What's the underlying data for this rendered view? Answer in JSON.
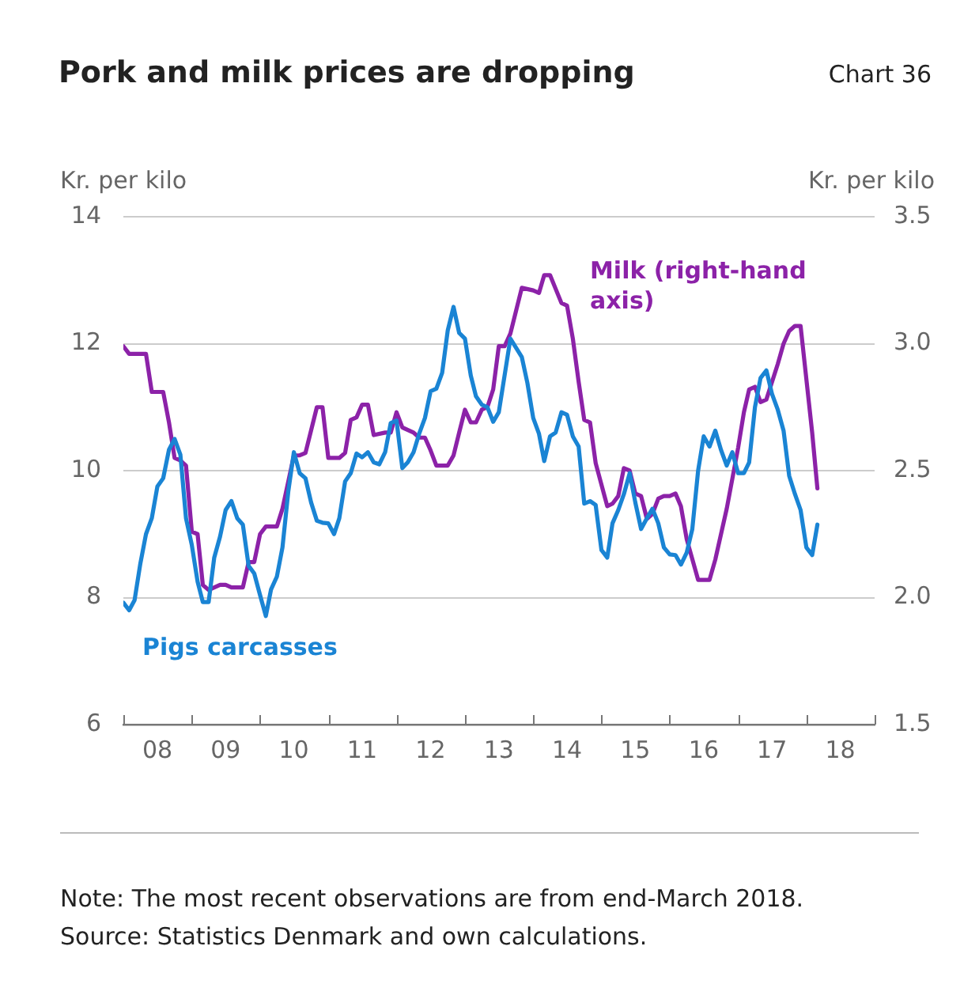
{
  "chart_data": {
    "type": "line",
    "title": "Pork and milk prices are dropping",
    "ylabel": "Kr. per kilo",
    "y2label": "Kr. per kilo",
    "annotations": [
      "Chart 36",
      "Note: The most recent observations are from end-March 2018.",
      "Source: Statistics Denmark and own calculations."
    ],
    "xlim": [
      "2008-01",
      "2019-01"
    ],
    "xticks": [
      {
        "value": "2008-01",
        "label": null
      },
      {
        "value": "2008-07",
        "label": "08"
      },
      {
        "value": "2009-01",
        "label": null
      },
      {
        "value": "2009-07",
        "label": "09"
      },
      {
        "value": "2010-01",
        "label": null
      },
      {
        "value": "2010-07",
        "label": "10"
      },
      {
        "value": "2011-01",
        "label": null
      },
      {
        "value": "2011-07",
        "label": "11"
      },
      {
        "value": "2012-01",
        "label": null
      },
      {
        "value": "2012-07",
        "label": "12"
      },
      {
        "value": "2013-01",
        "label": null
      },
      {
        "value": "2013-07",
        "label": "13"
      },
      {
        "value": "2014-01",
        "label": null
      },
      {
        "value": "2014-07",
        "label": "14"
      },
      {
        "value": "2015-01",
        "label": null
      },
      {
        "value": "2015-07",
        "label": "15"
      },
      {
        "value": "2016-01",
        "label": null
      },
      {
        "value": "2016-07",
        "label": "16"
      },
      {
        "value": "2017-01",
        "label": null
      },
      {
        "value": "2017-07",
        "label": "17"
      },
      {
        "value": "2018-01",
        "label": null
      },
      {
        "value": "2018-07",
        "label": "18"
      },
      {
        "value": "2019-01",
        "label": null
      }
    ],
    "ylim": [
      6,
      14
    ],
    "yticks": [
      6,
      8,
      10,
      12,
      14
    ],
    "y2lim": [
      1.5,
      3.5
    ],
    "y2ticks": [
      1.5,
      {
        "value": 2,
        "label": "2.0"
      },
      2.5,
      {
        "value": 3,
        "label": "3.0"
      },
      3.5
    ],
    "grid": "y",
    "legend": false,
    "marker": "none",
    "line_style": "solid",
    "series": [
      {
        "name": "Pigs carcasses",
        "color": "#1a84d4",
        "x": [
          "2008-01",
          "2008-02",
          "2008-03",
          "2008-04",
          "2008-05",
          "2008-06",
          "2008-07",
          "2008-08",
          "2008-09",
          "2008-10",
          "2008-11",
          "2008-12",
          "2009-01",
          "2009-02",
          "2009-03",
          "2009-04",
          "2009-05",
          "2009-06",
          "2009-07",
          "2009-08",
          "2009-09",
          "2009-10",
          "2009-11",
          "2009-12",
          "2010-01",
          "2010-02",
          "2010-03",
          "2010-04",
          "2010-05",
          "2010-06",
          "2010-07",
          "2010-08",
          "2010-09",
          "2010-10",
          "2010-11",
          "2010-12",
          "2011-01",
          "2011-02",
          "2011-03",
          "2011-04",
          "2011-05",
          "2011-06",
          "2011-07",
          "2011-08",
          "2011-09",
          "2011-10",
          "2011-11",
          "2011-12",
          "2012-01",
          "2012-02",
          "2012-03",
          "2012-04",
          "2012-05",
          "2012-06",
          "2012-07",
          "2012-08",
          "2012-09",
          "2012-10",
          "2012-11",
          "2012-12",
          "2013-01",
          "2013-02",
          "2013-03",
          "2013-04",
          "2013-05",
          "2013-06",
          "2013-07",
          "2013-09",
          "2013-11",
          "2013-12",
          "2014-01",
          "2014-02",
          "2014-03",
          "2014-04",
          "2014-05",
          "2014-06",
          "2014-07",
          "2014-08",
          "2014-09",
          "2014-10",
          "2014-11",
          "2014-12",
          "2015-01",
          "2015-02",
          "2015-03",
          "2015-04",
          "2015-05",
          "2015-06",
          "2015-07",
          "2015-08",
          "2015-09",
          "2015-10",
          "2015-11",
          "2015-12",
          "2016-01",
          "2016-02",
          "2016-03",
          "2016-04",
          "2016-05",
          "2016-06",
          "2016-07",
          "2016-08",
          "2016-09",
          "2016-10",
          "2016-11",
          "2016-12",
          "2017-01",
          "2017-02",
          "2017-03",
          "2017-04",
          "2017-05",
          "2017-06",
          "2017-07",
          "2017-08",
          "2017-09",
          "2017-10",
          "2017-11",
          "2017-12",
          "2018-01",
          "2018-02",
          "2018-03"
        ],
        "values": [
          7.92,
          7.8,
          7.96,
          8.54,
          9.0,
          9.25,
          9.75,
          9.88,
          10.33,
          10.5,
          10.25,
          9.25,
          8.83,
          8.25,
          7.93,
          7.93,
          8.63,
          8.96,
          9.38,
          9.52,
          9.25,
          9.15,
          8.5,
          8.38,
          8.04,
          7.71,
          8.13,
          8.33,
          8.79,
          9.67,
          10.29,
          9.96,
          9.88,
          9.5,
          9.21,
          9.18,
          9.17,
          9.0,
          9.25,
          9.83,
          9.96,
          10.27,
          10.21,
          10.29,
          10.13,
          10.1,
          10.29,
          10.75,
          10.79,
          10.04,
          10.13,
          10.29,
          10.58,
          10.83,
          11.25,
          11.29,
          11.54,
          12.21,
          12.58,
          12.17,
          12.08,
          11.5,
          11.17,
          11.04,
          11.0,
          10.77,
          10.92,
          12.08,
          11.79,
          11.38,
          10.83,
          10.58,
          10.15,
          10.54,
          10.6,
          10.92,
          10.88,
          10.54,
          10.38,
          9.48,
          9.52,
          9.46,
          8.75,
          8.63,
          9.17,
          9.38,
          9.63,
          9.96,
          9.5,
          9.08,
          9.25,
          9.4,
          9.17,
          8.79,
          8.68,
          8.67,
          8.52,
          8.71,
          9.08,
          10.0,
          10.54,
          10.38,
          10.63,
          10.33,
          10.08,
          10.29,
          9.96,
          9.96,
          10.13,
          11.0,
          11.46,
          11.58,
          11.21,
          10.96,
          10.63,
          9.92,
          9.63,
          9.38,
          8.79,
          8.67,
          9.15
        ]
      },
      {
        "name": "Milk (right-hand axis)",
        "color": "#8c22a8",
        "axis": "y2",
        "x": [
          "2008-01",
          "2008-02",
          "2008-04",
          "2008-05",
          "2008-06",
          "2008-08",
          "2008-09",
          "2008-10",
          "2008-11",
          "2008-12",
          "2009-01",
          "2009-02",
          "2009-03",
          "2009-04",
          "2009-06",
          "2009-07",
          "2009-08",
          "2009-10",
          "2009-11",
          "2009-12",
          "2010-01",
          "2010-02",
          "2010-04",
          "2010-05",
          "2010-07",
          "2010-08",
          "2010-09",
          "2010-11",
          "2010-12",
          "2011-01",
          "2011-03",
          "2011-04",
          "2011-05",
          "2011-06",
          "2011-07",
          "2011-08",
          "2011-09",
          "2011-11",
          "2011-12",
          "2012-01",
          "2012-02",
          "2012-04",
          "2012-05",
          "2012-06",
          "2012-07",
          "2012-08",
          "2012-10",
          "2012-11",
          "2012-12",
          "2013-01",
          "2013-02",
          "2013-03",
          "2013-04",
          "2013-05",
          "2013-06",
          "2013-07",
          "2013-08",
          "2013-09",
          "2013-11",
          "2014-01",
          "2014-02",
          "2014-03",
          "2014-04",
          "2014-06",
          "2014-07",
          "2014-08",
          "2014-09",
          "2014-10",
          "2014-11",
          "2014-12",
          "2015-02",
          "2015-03",
          "2015-04",
          "2015-05",
          "2015-06",
          "2015-07",
          "2015-08",
          "2015-09",
          "2015-10",
          "2015-11",
          "2015-12",
          "2016-01",
          "2016-02",
          "2016-03",
          "2016-04",
          "2016-06",
          "2016-08",
          "2016-09",
          "2016-11",
          "2017-01",
          "2017-02",
          "2017-03",
          "2017-04",
          "2017-05",
          "2017-06",
          "2017-08",
          "2017-09",
          "2017-10",
          "2017-11",
          "2017-12",
          "2018-02",
          "2018-03"
        ],
        "values": [
          2.99,
          2.96,
          2.96,
          2.96,
          2.81,
          2.81,
          2.69,
          2.55,
          2.54,
          2.52,
          2.26,
          2.25,
          2.05,
          2.03,
          2.05,
          2.05,
          2.04,
          2.04,
          2.14,
          2.14,
          2.25,
          2.28,
          2.28,
          2.35,
          2.56,
          2.56,
          2.57,
          2.75,
          2.75,
          2.55,
          2.55,
          2.57,
          2.7,
          2.71,
          2.76,
          2.76,
          2.64,
          2.65,
          2.65,
          2.73,
          2.67,
          2.65,
          2.63,
          2.63,
          2.58,
          2.52,
          2.52,
          2.56,
          2.65,
          2.74,
          2.69,
          2.69,
          2.74,
          2.75,
          2.82,
          2.99,
          2.99,
          3.04,
          3.22,
          3.21,
          3.2,
          3.27,
          3.27,
          3.16,
          3.15,
          3.02,
          2.85,
          2.7,
          2.69,
          2.53,
          2.36,
          2.37,
          2.4,
          2.51,
          2.5,
          2.41,
          2.4,
          2.31,
          2.33,
          2.39,
          2.4,
          2.4,
          2.41,
          2.36,
          2.23,
          2.07,
          2.07,
          2.15,
          2.35,
          2.59,
          2.73,
          2.82,
          2.83,
          2.77,
          2.78,
          2.92,
          3.0,
          3.05,
          3.07,
          3.07,
          2.65,
          2.43
        ]
      }
    ]
  }
}
